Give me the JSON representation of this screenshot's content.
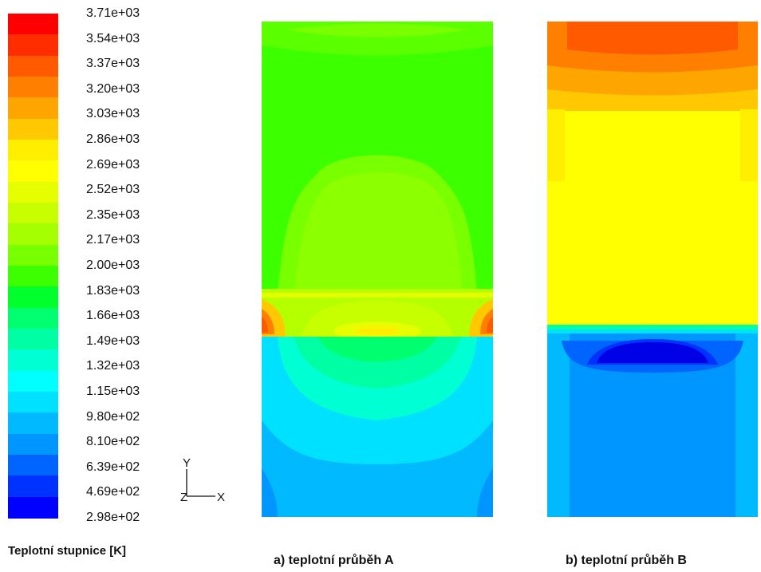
{
  "colorbar": {
    "title": "Teplotní stupnice [K]",
    "ticks": [
      "3.71e+03",
      "3.54e+03",
      "3.37e+03",
      "3.20e+03",
      "3.03e+03",
      "2.86e+03",
      "2.69e+03",
      "2.52e+03",
      "2.35e+03",
      "2.17e+03",
      "2.00e+03",
      "1.83e+03",
      "1.66e+03",
      "1.49e+03",
      "1.32e+03",
      "1.15e+03",
      "9.80e+02",
      "8.10e+02",
      "6.39e+02",
      "4.69e+02",
      "2.98e+02"
    ],
    "colors_top_to_bottom": [
      "#ff0000",
      "#ff2d00",
      "#ff5a00",
      "#ff8000",
      "#ffa500",
      "#ffc800",
      "#ffee00",
      "#ffff00",
      "#e6ff00",
      "#c8ff00",
      "#a5ff00",
      "#78ff00",
      "#3cff00",
      "#00ff2d",
      "#00ff6e",
      "#00ffa5",
      "#00ffd2",
      "#00ffff",
      "#00e1ff",
      "#00b9ff",
      "#0096ff",
      "#0064ff",
      "#0032ff",
      "#0000ff"
    ]
  },
  "axes_triad": {
    "y_label": "Y",
    "z_label": "Z",
    "x_label": "X"
  },
  "panels": [
    {
      "id": "a",
      "caption": "a) teplotní průběh A"
    },
    {
      "id": "b",
      "caption": "b) teplotní průběh B"
    }
  ],
  "chart_data": {
    "type": "heatmap",
    "title": "",
    "quantity": "Temperature",
    "unit": "K",
    "range": [
      298,
      3710
    ],
    "panels": [
      {
        "name": "a) teplotní průběh A",
        "regions": [
          {
            "zone": "upper",
            "temperature_K": 2000
          },
          {
            "zone": "upper-center dome",
            "temperature_K": 2200
          },
          {
            "zone": "interface hot spots",
            "temperature_K": 3370
          },
          {
            "zone": "center below interface",
            "temperature_K": 2690
          },
          {
            "zone": "lower",
            "temperature_K": 1150
          }
        ]
      },
      {
        "name": "b) teplotní průběh B",
        "regions": [
          {
            "zone": "top",
            "temperature_K": 3370
          },
          {
            "zone": "upper",
            "temperature_K": 2690
          },
          {
            "zone": "lower",
            "temperature_K": 810
          },
          {
            "zone": "lower center core",
            "temperature_K": 469
          }
        ]
      }
    ]
  }
}
